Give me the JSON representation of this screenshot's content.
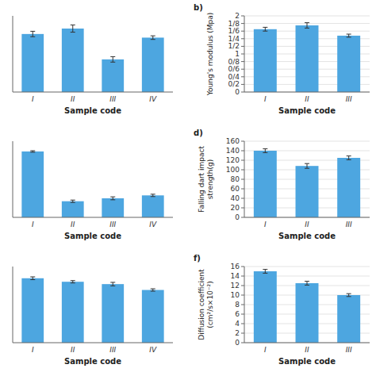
{
  "chart_data": [
    {
      "type": "bar",
      "categories": [
        "I",
        "II",
        "III",
        "IV"
      ],
      "values": [
        3.2,
        3.5,
        1.8,
        3.0
      ],
      "errors": [
        0.15,
        0.2,
        0.15,
        0.1
      ],
      "xlabel": "Sample code",
      "ylim": [
        0,
        4.2
      ],
      "tick_labels": "x",
      "color": "#4da6e0"
    },
    {
      "type": "bar",
      "title": "b)",
      "categories": [
        "I",
        "II",
        "III"
      ],
      "values": [
        1.65,
        1.75,
        1.48
      ],
      "errors": [
        0.05,
        0.07,
        0.04
      ],
      "ylabel": "Young's modulus (Mpa)",
      "xlabel": "Sample code",
      "ylim": [
        0,
        2.0
      ],
      "yticks": [
        0,
        {
          "value": 0.2,
          "label": "0/2"
        },
        {
          "value": 0.4,
          "label": "0/4"
        },
        {
          "value": 0.6,
          "label": "0/6"
        },
        {
          "value": 0.8,
          "label": "0/8"
        },
        1,
        {
          "value": 1.2,
          "label": "1/2"
        },
        {
          "value": 1.4,
          "label": "1/4"
        },
        {
          "value": 1.6,
          "label": "1/6"
        },
        {
          "value": 1.8,
          "label": "1/8"
        },
        2
      ],
      "color": "#4da6e0"
    },
    {
      "type": "bar",
      "categories": [
        "I",
        "II",
        "III",
        "IV"
      ],
      "values": [
        4.5,
        1.1,
        1.3,
        1.5
      ],
      "errors": [
        0.05,
        0.08,
        0.1,
        0.08
      ],
      "xlabel": "Sample code",
      "ylim": [
        0,
        5.2
      ],
      "tick_labels": "x",
      "color": "#4da6e0"
    },
    {
      "type": "bar",
      "title": "d)",
      "categories": [
        "I",
        "II",
        "III"
      ],
      "values": [
        140,
        108,
        125
      ],
      "errors": [
        4,
        5,
        4
      ],
      "ylabel": "Falling dart impact\nstrength(g)",
      "xlabel": "Sample code",
      "ylim": [
        0,
        160
      ],
      "yticks": [
        0,
        20,
        40,
        60,
        80,
        100,
        120,
        140,
        160
      ],
      "color": "#4da6e0"
    },
    {
      "type": "bar",
      "categories": [
        "I",
        "II",
        "III",
        "IV"
      ],
      "values": [
        5.5,
        5.2,
        5.0,
        4.5
      ],
      "errors": [
        0.12,
        0.1,
        0.15,
        0.1
      ],
      "xlabel": "Sample code",
      "ylim": [
        0,
        6.5
      ],
      "tick_labels": "x",
      "color": "#4da6e0"
    },
    {
      "type": "bar",
      "title": "f)",
      "categories": [
        "I",
        "II",
        "III"
      ],
      "values": [
        15,
        12.5,
        10
      ],
      "errors": [
        0.4,
        0.4,
        0.3
      ],
      "ylabel": "Diffusion coefficient\n(cm²/s×10⁻²)",
      "xlabel": "Sample code",
      "ylim": [
        0,
        16
      ],
      "yticks": [
        0,
        2,
        4,
        6,
        8,
        10,
        12,
        14,
        16
      ],
      "color": "#4da6e0"
    }
  ]
}
